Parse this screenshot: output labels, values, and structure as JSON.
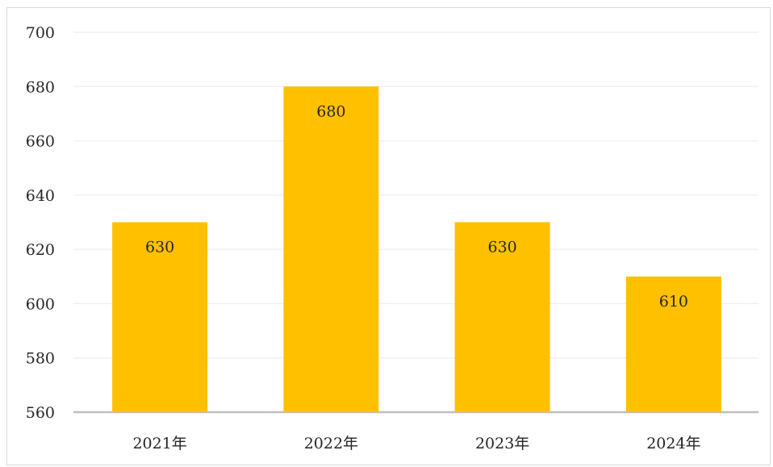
{
  "chart_data": {
    "type": "bar",
    "categories": [
      "2021年",
      "2022年",
      "2023年",
      "2024年"
    ],
    "values": [
      630,
      680,
      630,
      610
    ],
    "data_labels": [
      "630",
      "680",
      "630",
      "610"
    ],
    "ylim": [
      560,
      700
    ],
    "yticks": [
      560,
      580,
      600,
      620,
      640,
      660,
      680,
      700
    ],
    "title": "",
    "xlabel": "",
    "ylabel": "",
    "grid": true,
    "legend": "none",
    "bar_color": "#FFC000",
    "grid_color": "#f0f0f0",
    "axis_color": "#bfbfbf"
  }
}
